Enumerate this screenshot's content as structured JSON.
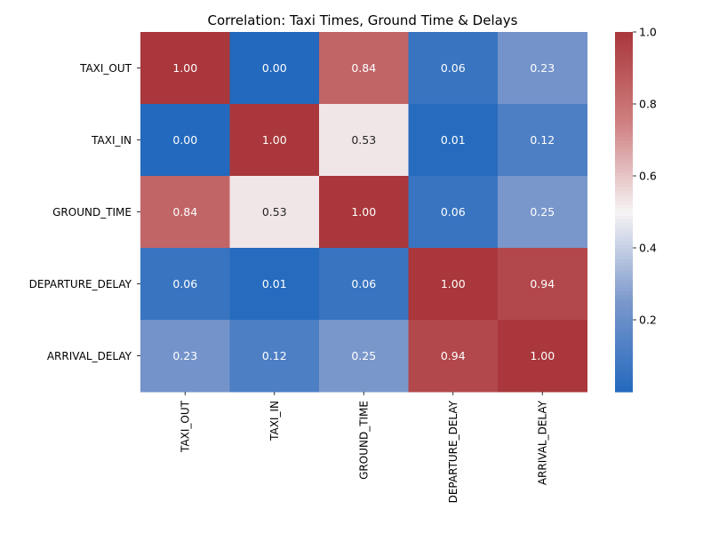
{
  "chart_data": {
    "type": "heatmap",
    "title": "Correlation: Taxi Times, Ground Time & Delays",
    "x_labels": [
      "TAXI_OUT",
      "TAXI_IN",
      "GROUND_TIME",
      "DEPARTURE_DELAY",
      "ARRIVAL_DELAY"
    ],
    "y_labels": [
      "TAXI_OUT",
      "TAXI_IN",
      "GROUND_TIME",
      "DEPARTURE_DELAY",
      "ARRIVAL_DELAY"
    ],
    "values": [
      [
        1.0,
        0.0,
        0.84,
        0.06,
        0.23
      ],
      [
        0.0,
        1.0,
        0.53,
        0.01,
        0.12
      ],
      [
        0.84,
        0.53,
        1.0,
        0.06,
        0.25
      ],
      [
        0.06,
        0.01,
        0.06,
        1.0,
        0.94
      ],
      [
        0.23,
        0.12,
        0.25,
        0.94,
        1.0
      ]
    ],
    "cell_labels": [
      [
        "1.00",
        "0.00",
        "0.84",
        "0.06",
        "0.23"
      ],
      [
        "0.00",
        "1.00",
        "0.53",
        "0.01",
        "0.12"
      ],
      [
        "0.84",
        "0.53",
        "1.00",
        "0.06",
        "0.25"
      ],
      [
        "0.06",
        "0.01",
        "0.06",
        "1.00",
        "0.94"
      ],
      [
        "0.23",
        "0.12",
        "0.25",
        "0.94",
        "1.00"
      ]
    ],
    "colorbar": {
      "range": [
        0.0,
        1.0
      ],
      "ticks": [
        0.2,
        0.4,
        0.6,
        0.8,
        1.0
      ],
      "tick_labels": [
        "0.2",
        "0.4",
        "0.6",
        "0.8",
        "1.0"
      ]
    },
    "colormap": "vlag",
    "colors": {
      "low": "#2369bd",
      "mid": "#f6f4f5",
      "high": "#a9373b"
    }
  }
}
